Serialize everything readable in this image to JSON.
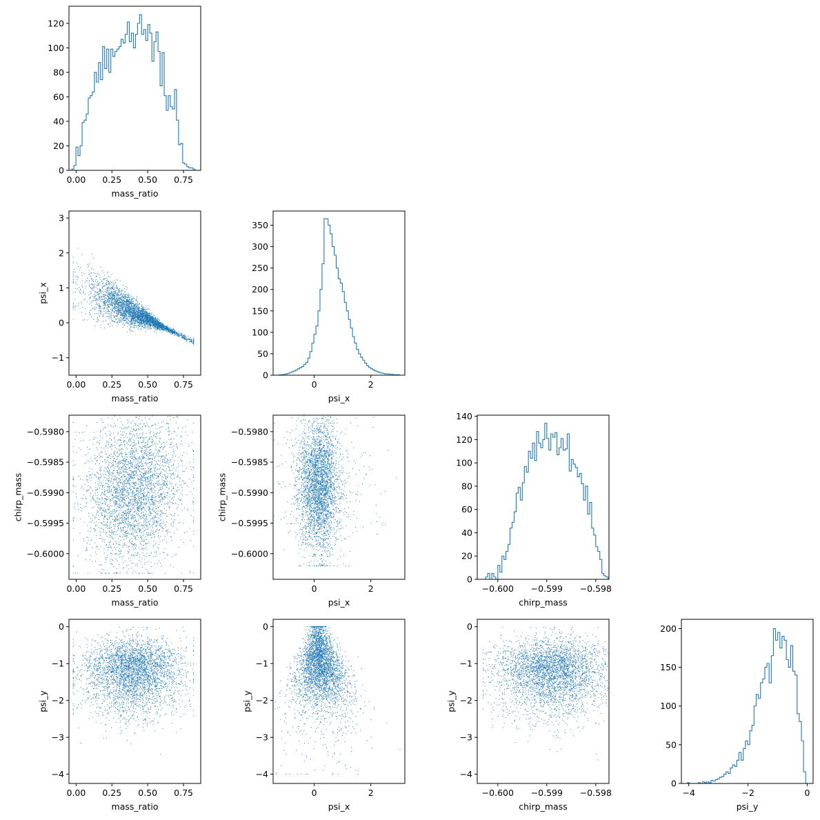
{
  "colors": {
    "primary": "#1f77b4"
  },
  "chart_data": [
    {
      "type": "histogram",
      "variable": "mass_ratio",
      "xlabel": "mass_ratio",
      "ylabel": "",
      "xlim": [
        -0.05,
        0.87
      ],
      "ylim": [
        0,
        134
      ],
      "xticks": [
        0.0,
        0.25,
        0.5,
        0.75
      ],
      "xtick_labels": [
        "0.00",
        "0.25",
        "0.50",
        "0.75"
      ],
      "yticks": [
        0,
        20,
        40,
        60,
        80,
        100,
        120
      ],
      "ytick_labels": [
        "0",
        "20",
        "40",
        "60",
        "80",
        "100",
        "120"
      ],
      "bin_edges_range": [
        -0.03,
        0.83
      ],
      "counts": [
        1,
        4,
        19,
        12,
        20,
        39,
        41,
        46,
        59,
        61,
        64,
        80,
        72,
        88,
        74,
        101,
        83,
        99,
        80,
        99,
        93,
        97,
        99,
        101,
        107,
        104,
        111,
        121,
        105,
        112,
        100,
        111,
        120,
        127,
        111,
        115,
        106,
        119,
        112,
        89,
        105,
        113,
        97,
        69,
        96,
        61,
        49,
        61,
        52,
        50,
        66,
        41,
        21,
        22,
        6,
        5,
        3,
        2,
        2,
        1
      ]
    },
    {
      "type": "scatter",
      "xvar": "mass_ratio",
      "yvar": "psi_x",
      "xlabel": "mass_ratio",
      "ylabel": "psi_x",
      "xlim": [
        -0.05,
        0.87
      ],
      "ylim": [
        -1.5,
        3.2
      ],
      "xticks": [
        0.0,
        0.25,
        0.5,
        0.75
      ],
      "xtick_labels": [
        "0.00",
        "0.25",
        "0.50",
        "0.75"
      ],
      "yticks": [
        -1,
        0,
        1,
        2,
        3
      ],
      "ytick_labels": [
        "−1",
        "0",
        "1",
        "2",
        "3"
      ]
    },
    {
      "type": "histogram",
      "variable": "psi_x",
      "xlabel": "psi_x",
      "ylabel": "",
      "xlim": [
        -1.45,
        3.2
      ],
      "ylim": [
        0,
        383
      ],
      "xticks": [
        0,
        2
      ],
      "xtick_labels": [
        "0",
        "2"
      ],
      "yticks": [
        0,
        50,
        100,
        150,
        200,
        250,
        300,
        350
      ],
      "ytick_labels": [
        "0",
        "50",
        "100",
        "150",
        "200",
        "250",
        "300",
        "350"
      ],
      "bin_edges_range": [
        -1.3,
        3.0
      ],
      "counts": [
        0,
        1,
        1,
        2,
        3,
        4,
        6,
        8,
        10,
        12,
        15,
        18,
        20,
        25,
        30,
        40,
        55,
        75,
        95,
        115,
        150,
        200,
        260,
        365,
        365,
        350,
        330,
        300,
        280,
        250,
        225,
        215,
        195,
        170,
        150,
        130,
        110,
        90,
        75,
        60,
        50,
        42,
        35,
        28,
        22,
        18,
        15,
        12,
        10,
        8,
        6,
        5,
        4,
        3,
        3,
        2,
        2,
        1,
        1,
        1
      ]
    },
    {
      "type": "scatter",
      "xvar": "mass_ratio",
      "yvar": "chirp_mass",
      "xlabel": "mass_ratio",
      "ylabel": "chirp_mass",
      "xlim": [
        -0.05,
        0.87
      ],
      "ylim": [
        -0.60042,
        -0.59773
      ],
      "xticks": [
        0.0,
        0.25,
        0.5,
        0.75
      ],
      "xtick_labels": [
        "0.00",
        "0.25",
        "0.50",
        "0.75"
      ],
      "yticks": [
        -0.6,
        -0.5995,
        -0.599,
        -0.5985,
        -0.598
      ],
      "ytick_labels": [
        "−0.6000",
        "−0.5995",
        "−0.5990",
        "−0.5985",
        "−0.5980"
      ]
    },
    {
      "type": "scatter",
      "xvar": "psi_x",
      "yvar": "chirp_mass",
      "xlabel": "psi_x",
      "ylabel": "chirp_mass",
      "xlim": [
        -1.45,
        3.2
      ],
      "ylim": [
        -0.60042,
        -0.59773
      ],
      "xticks": [
        0,
        2
      ],
      "xtick_labels": [
        "0",
        "2"
      ],
      "yticks": [
        -0.6,
        -0.5995,
        -0.599,
        -0.5985,
        -0.598
      ],
      "ytick_labels": [
        "−0.6000",
        "−0.5995",
        "−0.5990",
        "−0.5985",
        "−0.5980"
      ]
    },
    {
      "type": "histogram",
      "variable": "chirp_mass",
      "xlabel": "chirp_mass",
      "ylabel": "",
      "xlim": [
        -0.60042,
        -0.59773
      ],
      "ylim": [
        0,
        141
      ],
      "xticks": [
        -0.6,
        -0.599,
        -0.598
      ],
      "xtick_labels": [
        "−0.600",
        "−0.599",
        "−0.598"
      ],
      "yticks": [
        0,
        20,
        40,
        60,
        80,
        100,
        120,
        140
      ],
      "ytick_labels": [
        "0",
        "20",
        "40",
        "60",
        "80",
        "100",
        "120",
        "140"
      ],
      "bin_edges_range": [
        -0.60025,
        -0.59775
      ],
      "counts": [
        2,
        5,
        0,
        5,
        2,
        0,
        12,
        6,
        20,
        17,
        24,
        30,
        44,
        49,
        58,
        74,
        79,
        68,
        83,
        97,
        92,
        110,
        104,
        117,
        102,
        127,
        117,
        113,
        120,
        134,
        121,
        111,
        125,
        122,
        126,
        107,
        113,
        121,
        111,
        112,
        125,
        93,
        103,
        99,
        96,
        88,
        91,
        82,
        68,
        80,
        56,
        66,
        44,
        38,
        28,
        24,
        17,
        5,
        3,
        2
      ]
    },
    {
      "type": "scatter",
      "xvar": "mass_ratio",
      "yvar": "psi_y",
      "xlabel": "mass_ratio",
      "ylabel": "psi_y",
      "xlim": [
        -0.05,
        0.87
      ],
      "ylim": [
        -4.25,
        0.2
      ],
      "xticks": [
        0.0,
        0.25,
        0.5,
        0.75
      ],
      "xtick_labels": [
        "0.00",
        "0.25",
        "0.50",
        "0.75"
      ],
      "yticks": [
        -4,
        -3,
        -2,
        -1,
        0
      ],
      "ytick_labels": [
        "−4",
        "−3",
        "−2",
        "−1",
        "0"
      ]
    },
    {
      "type": "scatter",
      "xvar": "psi_x",
      "yvar": "psi_y",
      "xlabel": "psi_x",
      "ylabel": "psi_y",
      "xlim": [
        -1.45,
        3.2
      ],
      "ylim": [
        -4.25,
        0.2
      ],
      "xticks": [
        0,
        2
      ],
      "xtick_labels": [
        "0",
        "2"
      ],
      "yticks": [
        -4,
        -3,
        -2,
        -1,
        0
      ],
      "ytick_labels": [
        "−4",
        "−3",
        "−2",
        "−1",
        "0"
      ]
    },
    {
      "type": "scatter",
      "xvar": "chirp_mass",
      "yvar": "psi_y",
      "xlabel": "chirp_mass",
      "ylabel": "psi_y",
      "xlim": [
        -0.60042,
        -0.59773
      ],
      "ylim": [
        -4.25,
        0.2
      ],
      "xticks": [
        -0.6,
        -0.599,
        -0.598
      ],
      "xtick_labels": [
        "−0.600",
        "−0.599",
        "−0.598"
      ],
      "yticks": [
        -4,
        -3,
        -2,
        -1,
        0
      ],
      "ytick_labels": [
        "−4",
        "−3",
        "−2",
        "−1",
        "0"
      ]
    },
    {
      "type": "histogram",
      "variable": "psi_y",
      "xlabel": "psi_y",
      "ylabel": "",
      "xlim": [
        -4.25,
        0.2
      ],
      "ylim": [
        0,
        212
      ],
      "xticks": [
        -4,
        -2,
        0
      ],
      "xtick_labels": [
        "−4",
        "−2",
        "0"
      ],
      "yticks": [
        0,
        50,
        100,
        150,
        200
      ],
      "ytick_labels": [
        "0",
        "50",
        "100",
        "150",
        "200"
      ],
      "bin_edges_range": [
        -4.05,
        -0.05
      ],
      "counts": [
        1,
        0,
        0,
        0,
        0,
        1,
        0,
        2,
        1,
        2,
        1,
        4,
        3,
        5,
        6,
        8,
        9,
        12,
        15,
        13,
        20,
        24,
        22,
        30,
        40,
        30,
        45,
        55,
        50,
        68,
        75,
        100,
        115,
        110,
        130,
        135,
        150,
        155,
        130,
        165,
        200,
        185,
        195,
        175,
        190,
        185,
        160,
        150,
        178,
        145,
        140,
        90,
        80,
        55,
        15
      ]
    }
  ]
}
